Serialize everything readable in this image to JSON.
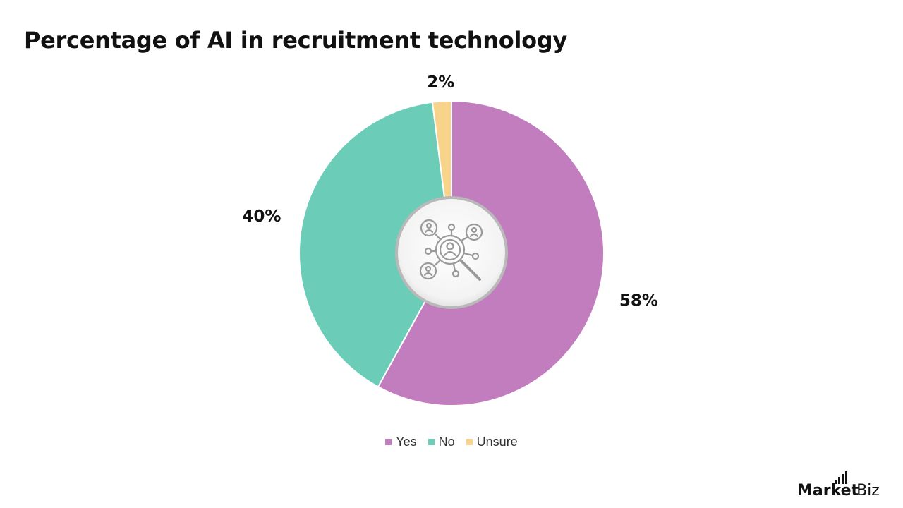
{
  "chart_data": {
    "type": "pie",
    "title": "Percentage of AI in recruitment technology",
    "slices": [
      {
        "label": "Yes",
        "value": 58,
        "display": "58%",
        "color": "#c27dbe"
      },
      {
        "label": "No",
        "value": 40,
        "display": "40%",
        "color": "#6bcdb8"
      },
      {
        "label": "Unsure",
        "value": 2,
        "display": "2%",
        "color": "#f8d48a"
      }
    ],
    "legend_position": "bottom",
    "center_icon": "recruitment-network-search-icon"
  },
  "branding": {
    "logo_text_main": "Market",
    "logo_text_suffix": ".Biz"
  }
}
